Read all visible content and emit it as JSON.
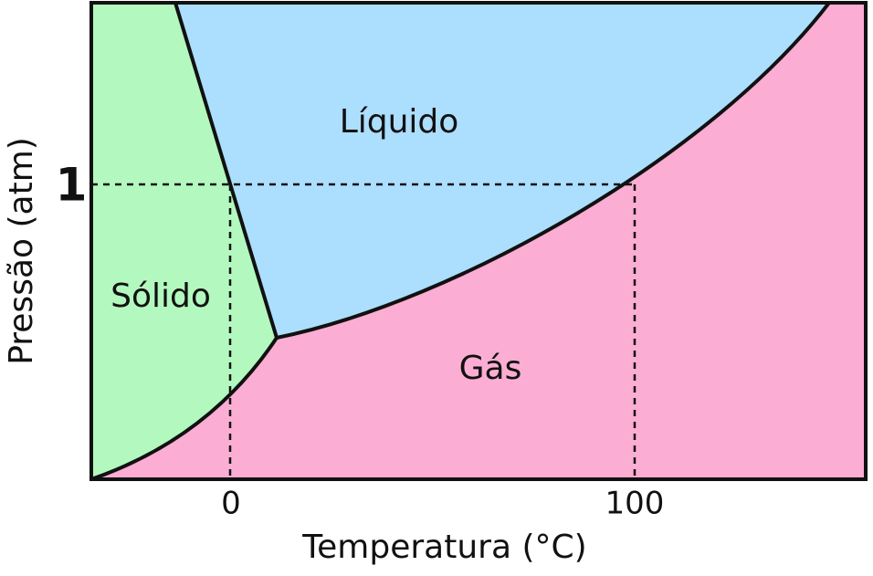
{
  "regions": {
    "solid": "Sólido",
    "liquid": "Líquido",
    "gas": "Gás"
  },
  "axes": {
    "x_label": "Temperatura (°C)",
    "y_label": "Pressão (atm)",
    "x_marks": [
      "0",
      "100"
    ],
    "y_mark": "1"
  }
}
